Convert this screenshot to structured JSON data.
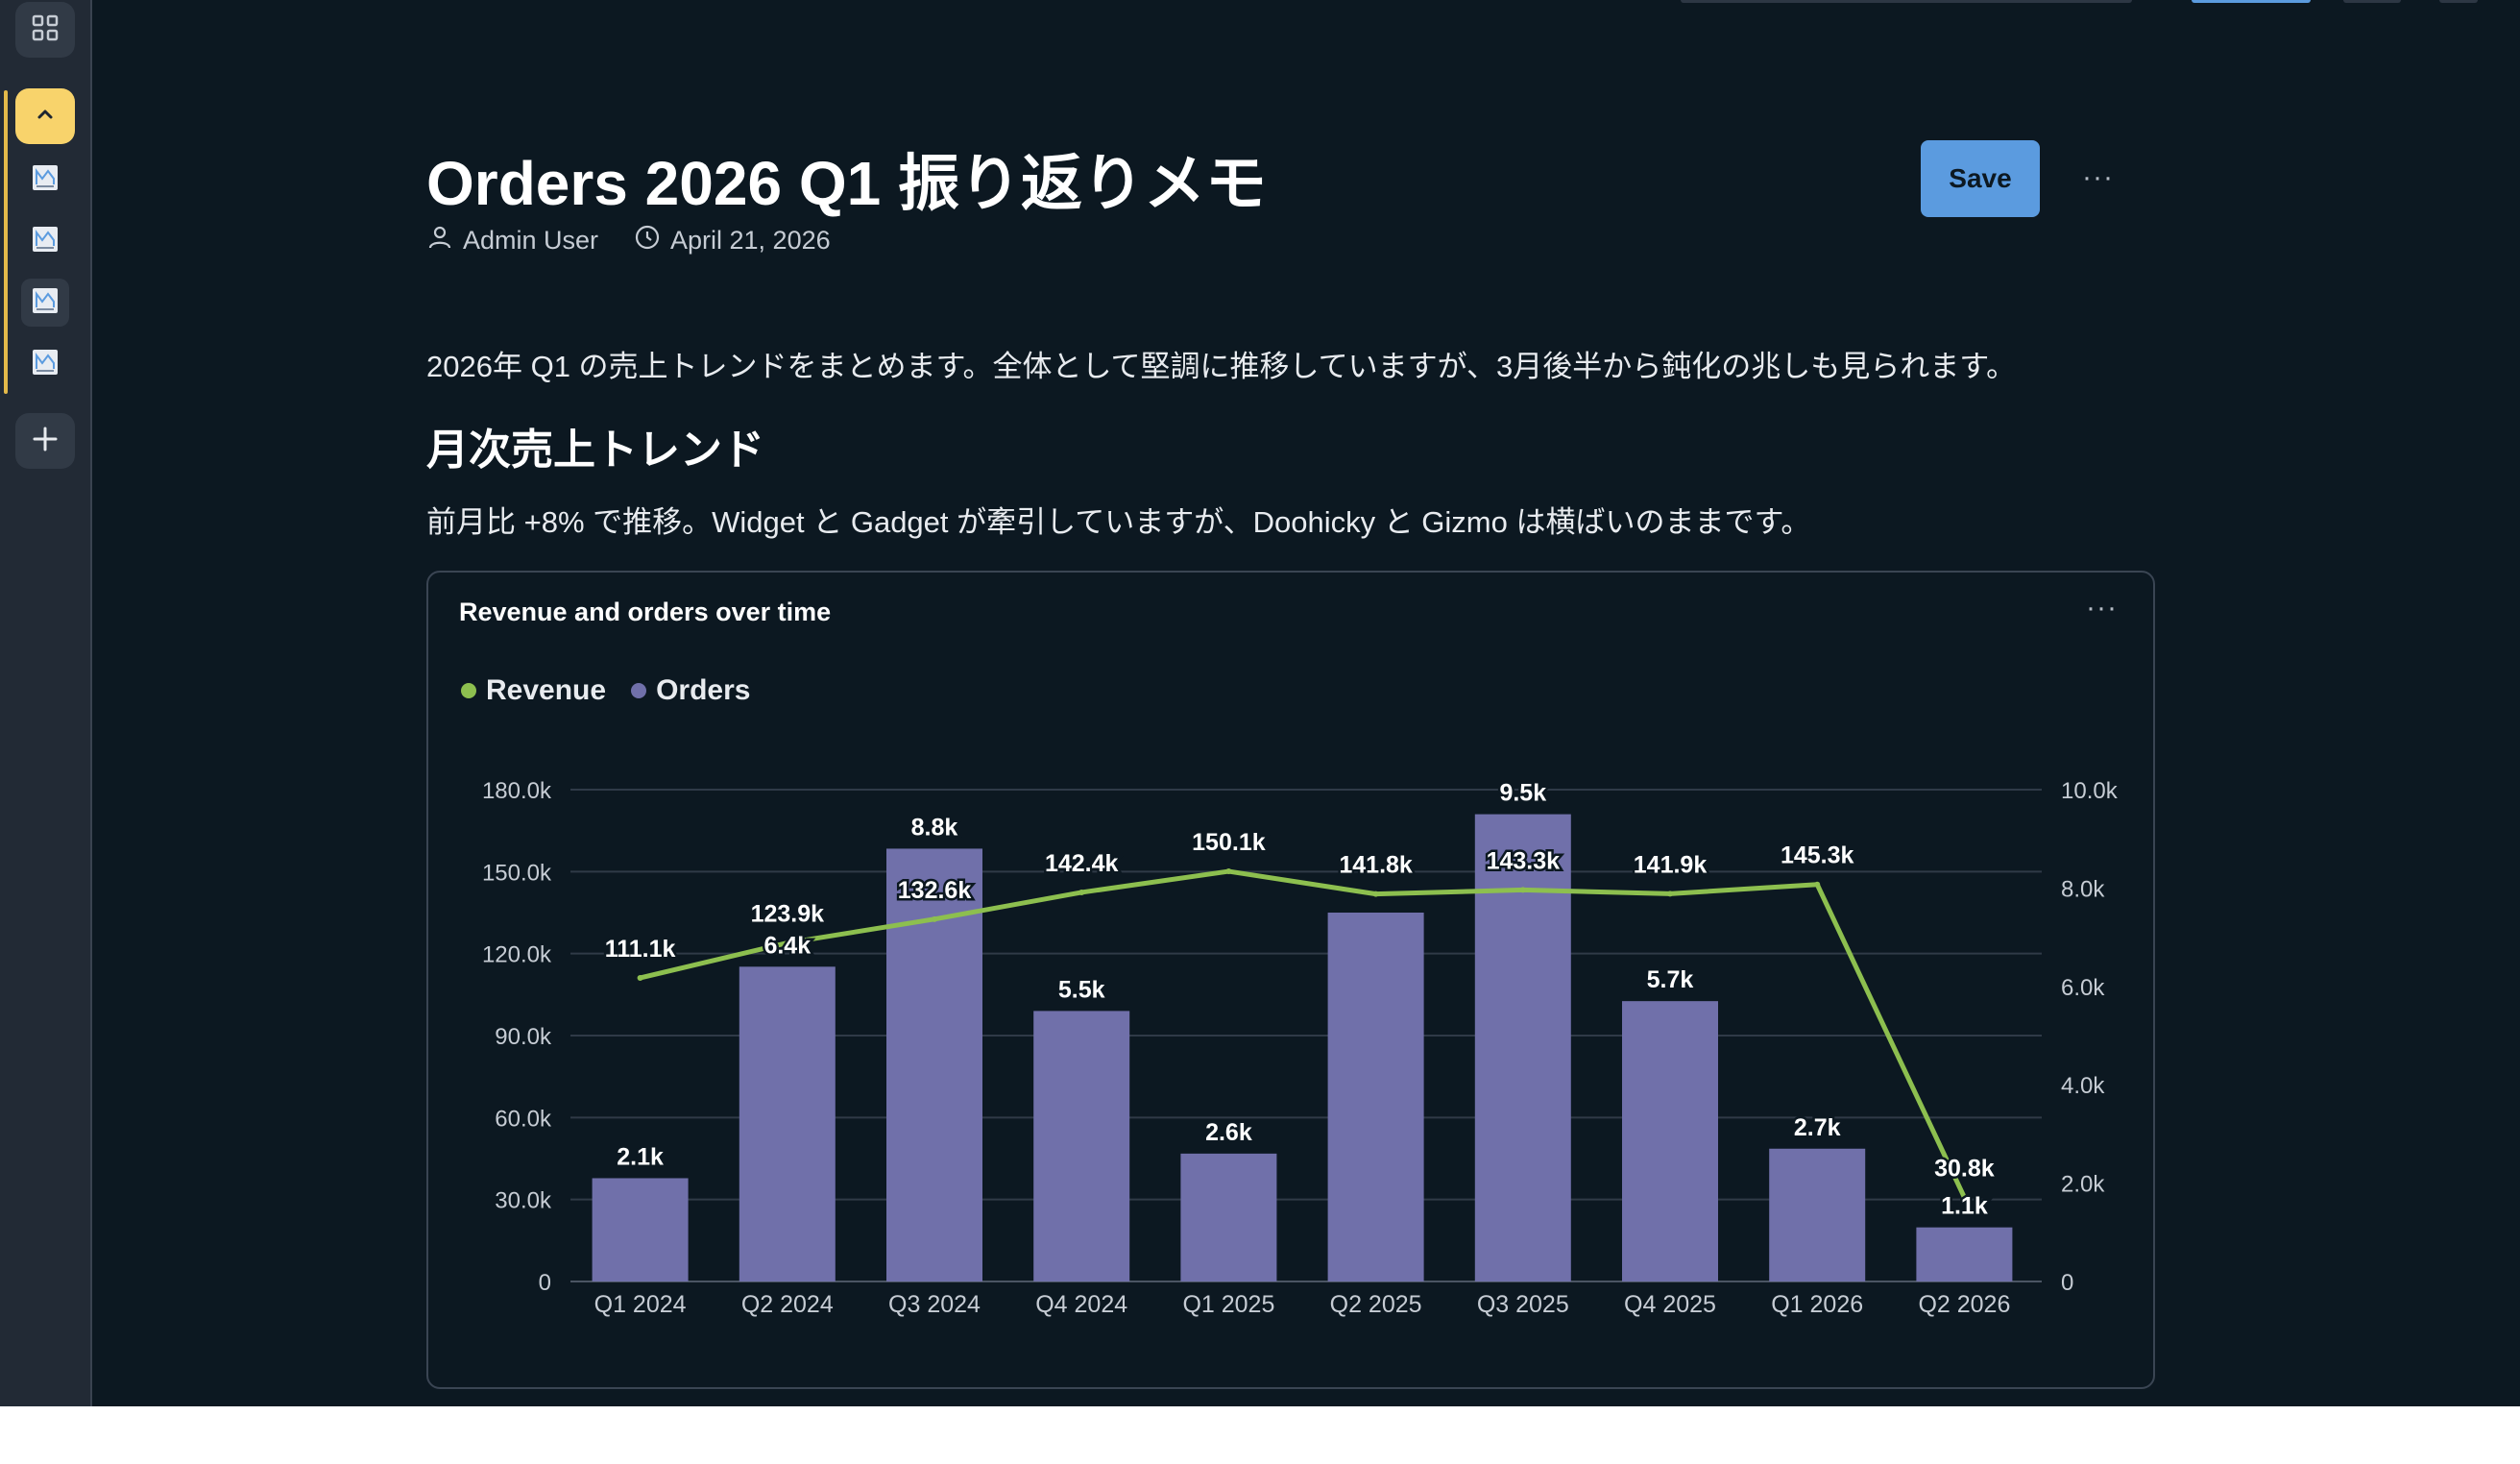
{
  "document": {
    "title": "Orders 2026 Q1 振り返りメモ",
    "author": "Admin User",
    "date": "April 21, 2026",
    "save_label": "Save",
    "more_label": "···",
    "intro": "2026年 Q1 の売上トレンドをまとめます。全体として堅調に推移していますが、3月後半から鈍化の兆しも見られます。",
    "section_heading": "月次売上トレンド",
    "section_text": "前月比 +8% で推移。Widget と Gadget が牽引していますが、Doohicky と Gizmo は横ばいのままです。"
  },
  "card": {
    "title": "Revenue and orders over time",
    "more_label": "···"
  },
  "icons": {
    "apps": "grid-icon",
    "collapse": "chevron-up-icon",
    "doc": "document-icon",
    "add": "plus-icon",
    "user": "person-icon",
    "clock": "clock-icon"
  },
  "colors": {
    "revenue": "#8dbf4f",
    "orders": "#7070aa",
    "save": "#5b9bdf",
    "accent": "#f8d36b"
  },
  "chart_data": {
    "type": "bar",
    "categories": [
      "Q1 2024",
      "Q2 2024",
      "Q3 2024",
      "Q4 2024",
      "Q1 2025",
      "Q2 2025",
      "Q3 2025",
      "Q4 2025",
      "Q1 2026",
      "Q2 2026"
    ],
    "series": [
      {
        "name": "Revenue",
        "type": "line",
        "axis": "left",
        "values": [
          111100,
          123900,
          132600,
          142400,
          150100,
          141800,
          143300,
          141900,
          145300,
          30800
        ],
        "labels": [
          "111.1k",
          "123.9k",
          "132.6k",
          "142.4k",
          "150.1k",
          "141.8k",
          "143.3k",
          "141.9k",
          "145.3k",
          "30.8k"
        ]
      },
      {
        "name": "Orders",
        "type": "bar",
        "axis": "right",
        "values": [
          2100,
          6400,
          8800,
          5500,
          2600,
          7500,
          9500,
          5700,
          2700,
          1100
        ],
        "labels": [
          "2.1k",
          "6.4k",
          "8.8k",
          "5.5k",
          "2.6k",
          "",
          "9.5k",
          "5.7k",
          "2.7k",
          "1.1k"
        ]
      }
    ],
    "left_axis": {
      "ticks": [
        "0",
        "30.0k",
        "60.0k",
        "90.0k",
        "120.0k",
        "150.0k",
        "180.0k"
      ],
      "ylim": [
        0,
        180000
      ]
    },
    "right_axis": {
      "ticks": [
        "0",
        "2.0k",
        "4.0k",
        "6.0k",
        "8.0k",
        "10.0k"
      ],
      "ylim": [
        0,
        10000
      ]
    },
    "grid": true,
    "legend": "top-left"
  }
}
